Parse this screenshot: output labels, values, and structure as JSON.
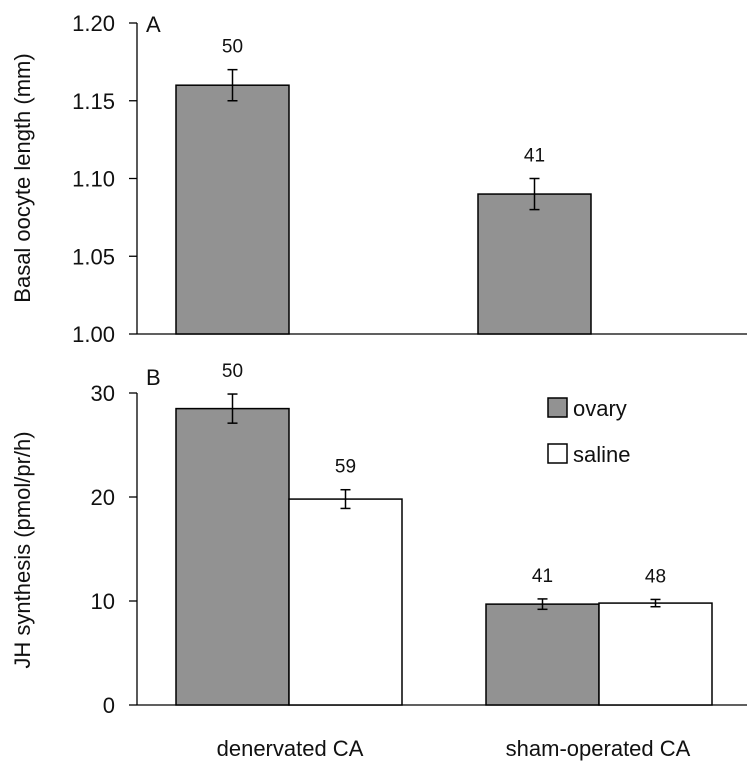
{
  "x_labels": [
    "denervated CA",
    "sham-operated CA"
  ],
  "legend": [
    {
      "label": "ovary",
      "color": "#929292"
    },
    {
      "label": "saline",
      "color": "#ffffff"
    }
  ],
  "chart_data": [
    {
      "type": "bar",
      "panel_label": "A",
      "ylabel": "Basal oocyte length (mm)",
      "ylim": [
        1.0,
        1.2
      ],
      "yticks": [
        "1.00",
        "1.05",
        "1.10",
        "1.15",
        "1.20"
      ],
      "ytick_values": [
        1.0,
        1.05,
        1.1,
        1.15,
        1.2
      ],
      "categories": [
        "denervated CA",
        "sham-operated CA"
      ],
      "series": [
        {
          "values": [
            1.16,
            1.09
          ],
          "errors": [
            0.01,
            0.01
          ],
          "n": [
            "50",
            "41"
          ],
          "color": "#929292"
        }
      ]
    },
    {
      "type": "bar",
      "panel_label": "B",
      "ylabel": "JH synthesis (pmol/pr/h)",
      "ylim": [
        0,
        30
      ],
      "yticks": [
        "0",
        "10",
        "20",
        "30"
      ],
      "ytick_values": [
        0,
        10,
        20,
        30
      ],
      "categories": [
        "denervated CA",
        "sham-operated CA"
      ],
      "legend_position": "top-right",
      "series": [
        {
          "name": "ovary",
          "values": [
            28.5,
            9.7
          ],
          "errors": [
            1.4,
            0.5
          ],
          "n": [
            "50",
            "41"
          ],
          "color": "#929292"
        },
        {
          "name": "saline",
          "values": [
            19.8,
            9.8
          ],
          "errors": [
            0.9,
            0.35
          ],
          "n": [
            "59",
            "48"
          ],
          "color": "#ffffff"
        }
      ]
    }
  ]
}
